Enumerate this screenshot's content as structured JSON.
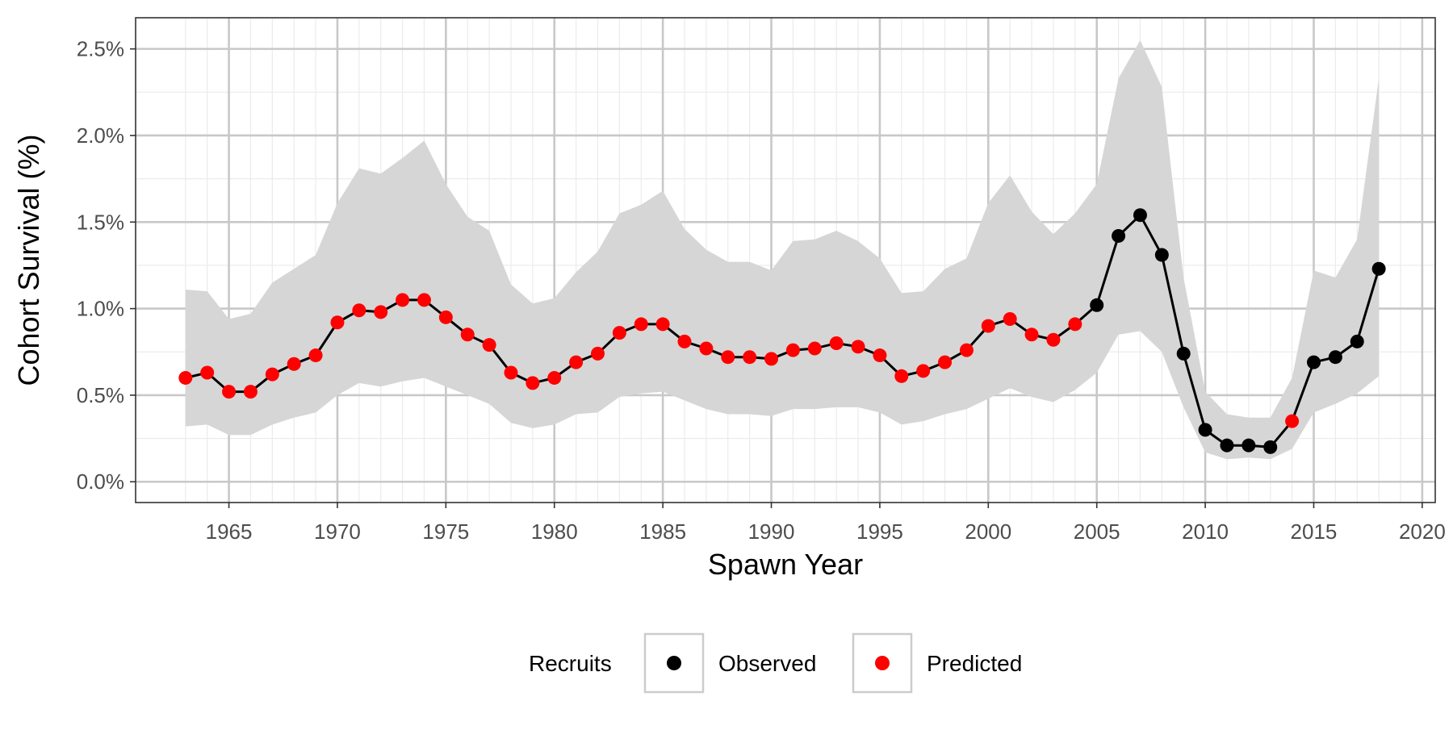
{
  "chart_data": {
    "type": "line",
    "title": "",
    "xlabel": "Spawn Year",
    "ylabel": "Cohort Survival (%)",
    "xlim": [
      1960.7,
      2020.6
    ],
    "ylim": [
      -0.12,
      2.68
    ],
    "x_ticks": [
      1965,
      1970,
      1975,
      1980,
      1985,
      1990,
      1995,
      2000,
      2005,
      2010,
      2015,
      2020
    ],
    "y_ticks": [
      0.0,
      0.5,
      1.0,
      1.5,
      2.0,
      2.5
    ],
    "x_tick_labels": [
      "1965",
      "1970",
      "1975",
      "1980",
      "1985",
      "1990",
      "1995",
      "2000",
      "2005",
      "2010",
      "2015",
      "2020"
    ],
    "y_tick_labels": [
      "0.0%",
      "0.5%",
      "1.0%",
      "1.5%",
      "2.0%",
      "2.5%"
    ],
    "grid": true,
    "legend": {
      "title": "Recruits",
      "position": "bottom",
      "items": [
        {
          "label": "Observed",
          "color": "#000000"
        },
        {
          "label": "Predicted",
          "color": "#ff0000"
        }
      ]
    },
    "colors": {
      "line": "#000000",
      "ribbon": "#d6d6d6",
      "observed": "#000000",
      "predicted": "#ff0000",
      "grid": "#c8c8c8",
      "panel_border": "#333333"
    },
    "x": [
      1963,
      1964,
      1965,
      1966,
      1967,
      1968,
      1969,
      1970,
      1971,
      1972,
      1973,
      1974,
      1975,
      1976,
      1977,
      1978,
      1979,
      1980,
      1981,
      1982,
      1983,
      1984,
      1985,
      1986,
      1987,
      1988,
      1989,
      1990,
      1991,
      1992,
      1993,
      1994,
      1995,
      1996,
      1997,
      1998,
      1999,
      2000,
      2001,
      2002,
      2003,
      2004,
      2005,
      2006,
      2007,
      2008,
      2009,
      2010,
      2011,
      2012,
      2013,
      2014,
      2015,
      2016,
      2017,
      2018
    ],
    "series": [
      {
        "values": [
          0.6,
          0.63,
          0.52,
          0.52,
          0.62,
          0.68,
          0.73,
          0.92,
          0.99,
          0.98,
          1.05,
          1.05,
          0.95,
          0.85,
          0.79,
          0.63,
          0.57,
          0.6,
          0.69,
          0.74,
          0.86,
          0.91,
          0.91,
          0.81,
          0.77,
          0.72,
          0.72,
          0.71,
          0.76,
          0.77,
          0.8,
          0.78,
          0.73,
          0.61,
          0.64,
          0.69,
          0.76,
          0.9,
          0.94,
          0.85,
          0.82,
          0.91,
          1.02,
          1.42,
          1.54,
          1.31,
          0.74,
          0.3,
          0.21,
          0.21,
          0.2,
          0.35,
          0.69,
          0.72,
          0.81,
          1.23
        ],
        "status": [
          "Predicted",
          "Predicted",
          "Predicted",
          "Predicted",
          "Predicted",
          "Predicted",
          "Predicted",
          "Predicted",
          "Predicted",
          "Predicted",
          "Predicted",
          "Predicted",
          "Predicted",
          "Predicted",
          "Predicted",
          "Predicted",
          "Predicted",
          "Predicted",
          "Predicted",
          "Predicted",
          "Predicted",
          "Predicted",
          "Predicted",
          "Predicted",
          "Predicted",
          "Predicted",
          "Predicted",
          "Predicted",
          "Predicted",
          "Predicted",
          "Predicted",
          "Predicted",
          "Predicted",
          "Predicted",
          "Predicted",
          "Predicted",
          "Predicted",
          "Predicted",
          "Predicted",
          "Predicted",
          "Predicted",
          "Predicted",
          "Observed",
          "Observed",
          "Observed",
          "Observed",
          "Observed",
          "Observed",
          "Observed",
          "Observed",
          "Observed",
          "Predicted",
          "Observed",
          "Observed",
          "Observed",
          "Observed"
        ],
        "lower": [
          0.32,
          0.33,
          0.27,
          0.27,
          0.33,
          0.37,
          0.4,
          0.5,
          0.57,
          0.55,
          0.58,
          0.6,
          0.55,
          0.5,
          0.45,
          0.34,
          0.31,
          0.33,
          0.39,
          0.4,
          0.49,
          0.51,
          0.52,
          0.47,
          0.42,
          0.39,
          0.39,
          0.38,
          0.42,
          0.42,
          0.43,
          0.43,
          0.4,
          0.33,
          0.35,
          0.39,
          0.42,
          0.48,
          0.54,
          0.49,
          0.46,
          0.53,
          0.63,
          0.85,
          0.87,
          0.75,
          0.43,
          0.17,
          0.13,
          0.14,
          0.13,
          0.19,
          0.4,
          0.45,
          0.51,
          0.61
        ],
        "upper": [
          1.11,
          1.1,
          0.94,
          0.97,
          1.15,
          1.23,
          1.31,
          1.61,
          1.81,
          1.78,
          1.87,
          1.97,
          1.72,
          1.53,
          1.45,
          1.14,
          1.03,
          1.06,
          1.21,
          1.33,
          1.55,
          1.6,
          1.68,
          1.46,
          1.34,
          1.27,
          1.27,
          1.22,
          1.39,
          1.4,
          1.45,
          1.39,
          1.29,
          1.09,
          1.1,
          1.23,
          1.29,
          1.61,
          1.77,
          1.56,
          1.43,
          1.55,
          1.72,
          2.33,
          2.55,
          2.28,
          1.18,
          0.52,
          0.39,
          0.37,
          0.37,
          0.6,
          1.22,
          1.18,
          1.4,
          2.33
        ]
      }
    ]
  }
}
